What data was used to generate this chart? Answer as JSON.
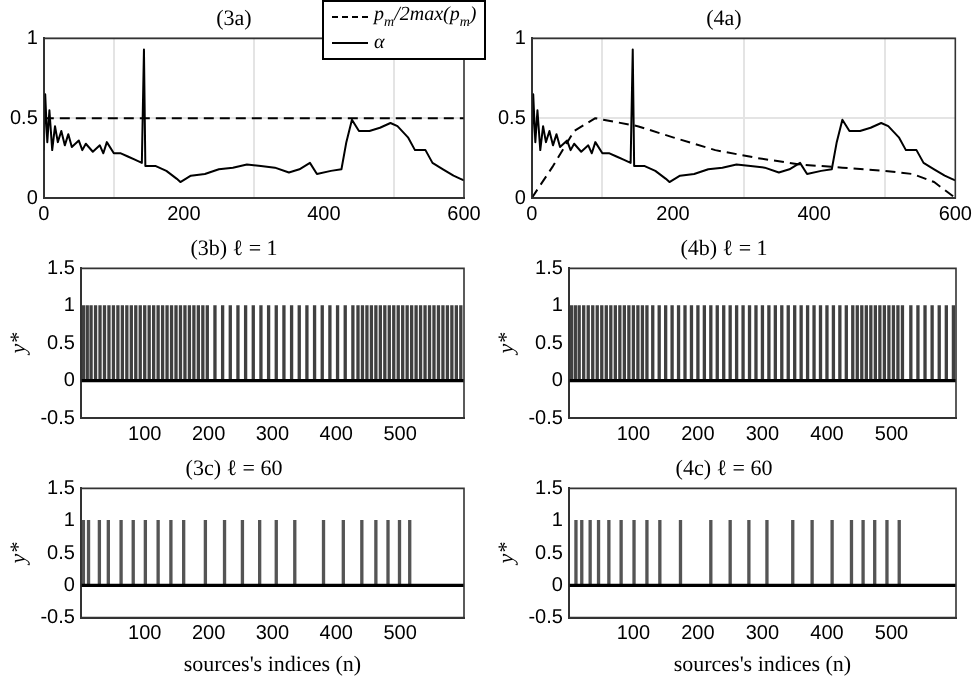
{
  "chart_data": [
    {
      "type": "line",
      "title": "(3a)",
      "xlim": [
        0,
        600
      ],
      "xticks": [
        0,
        200,
        400,
        600
      ],
      "ylim": [
        0,
        1
      ],
      "yticks": [
        0,
        0.5,
        1
      ],
      "grid": true,
      "legend": "top right",
      "marker": "none",
      "series": [
        {
          "name": "p$_{m}$/2max(p$_{m}$)",
          "color": "#000000",
          "line_style": "dashed",
          "x": [
            0,
            600
          ],
          "values": [
            0.5,
            0.5
          ]
        },
        {
          "name": "α",
          "color": "#000000",
          "line_style": "solid",
          "x": [
            0,
            2,
            5,
            8,
            12,
            16,
            20,
            25,
            30,
            35,
            40,
            50,
            55,
            60,
            70,
            80,
            85,
            90,
            100,
            110,
            120,
            130,
            140,
            143,
            145,
            160,
            175,
            190,
            195,
            210,
            230,
            250,
            270,
            290,
            310,
            330,
            350,
            365,
            380,
            390,
            410,
            425,
            432,
            440,
            450,
            465,
            480,
            495,
            505,
            520,
            530,
            545,
            555,
            570,
            585,
            595,
            600
          ],
          "values": [
            0.3,
            0.65,
            0.35,
            0.55,
            0.3,
            0.45,
            0.35,
            0.42,
            0.33,
            0.4,
            0.32,
            0.36,
            0.3,
            0.34,
            0.29,
            0.33,
            0.28,
            0.35,
            0.28,
            0.28,
            0.26,
            0.24,
            0.22,
            0.93,
            0.2,
            0.2,
            0.17,
            0.12,
            0.1,
            0.14,
            0.15,
            0.18,
            0.19,
            0.21,
            0.2,
            0.19,
            0.16,
            0.18,
            0.22,
            0.15,
            0.17,
            0.18,
            0.35,
            0.49,
            0.42,
            0.42,
            0.44,
            0.47,
            0.45,
            0.38,
            0.3,
            0.3,
            0.22,
            0.18,
            0.14,
            0.12,
            0.11
          ]
        }
      ]
    },
    {
      "type": "line",
      "title": "(4a)",
      "xlim": [
        0,
        600
      ],
      "xticks": [
        0,
        200,
        400,
        600
      ],
      "ylim": [
        0,
        1
      ],
      "yticks": [
        0,
        0.5,
        1
      ],
      "grid": true,
      "marker": "none",
      "series": [
        {
          "color": "#000000",
          "line_style": "dashed",
          "x": [
            0,
            30,
            60,
            90,
            150,
            200,
            260,
            320,
            380,
            440,
            500,
            540,
            570,
            600
          ],
          "values": [
            0,
            0.2,
            0.42,
            0.5,
            0.45,
            0.38,
            0.3,
            0.25,
            0.21,
            0.19,
            0.17,
            0.15,
            0.1,
            0
          ]
        },
        {
          "color": "#000000",
          "line_style": "solid",
          "x": [
            0,
            2,
            5,
            8,
            12,
            16,
            20,
            25,
            30,
            35,
            40,
            50,
            55,
            60,
            70,
            80,
            85,
            90,
            100,
            110,
            120,
            130,
            140,
            143,
            145,
            160,
            175,
            190,
            195,
            210,
            230,
            250,
            270,
            290,
            310,
            330,
            350,
            365,
            380,
            390,
            410,
            425,
            432,
            440,
            450,
            465,
            480,
            495,
            505,
            520,
            530,
            545,
            555,
            570,
            585,
            595,
            600
          ],
          "values": [
            0.3,
            0.65,
            0.35,
            0.55,
            0.3,
            0.45,
            0.35,
            0.42,
            0.33,
            0.4,
            0.32,
            0.36,
            0.3,
            0.34,
            0.29,
            0.33,
            0.28,
            0.35,
            0.28,
            0.28,
            0.26,
            0.24,
            0.22,
            0.93,
            0.2,
            0.2,
            0.17,
            0.12,
            0.1,
            0.14,
            0.15,
            0.18,
            0.19,
            0.21,
            0.2,
            0.19,
            0.16,
            0.18,
            0.22,
            0.15,
            0.17,
            0.18,
            0.35,
            0.49,
            0.42,
            0.42,
            0.44,
            0.47,
            0.45,
            0.38,
            0.3,
            0.3,
            0.22,
            0.18,
            0.14,
            0.12,
            0.11
          ]
        }
      ]
    },
    {
      "type": "bar",
      "title": "(3b) ℓ = 1",
      "ylabel": "y*",
      "xlim": [
        0,
        600
      ],
      "xticks": [
        100,
        200,
        300,
        400,
        500
      ],
      "ylim": [
        -0.5,
        1.5
      ],
      "yticks": [
        -0.5,
        0,
        0.5,
        1,
        1.5
      ],
      "marker": "none",
      "ref_lines": [
        {
          "axis": "y",
          "value": 0,
          "color": "#000000"
        }
      ],
      "series": [
        {
          "color": "#404040",
          "x": [
            4,
            10,
            16,
            23,
            30,
            37,
            44,
            51,
            58,
            65,
            72,
            79,
            86,
            93,
            100,
            107,
            114,
            121,
            128,
            135,
            142,
            149,
            156,
            163,
            170,
            177,
            184,
            191,
            198,
            210,
            222,
            234,
            246,
            258,
            270,
            282,
            294,
            306,
            318,
            330,
            342,
            354,
            366,
            378,
            390,
            402,
            414,
            426,
            434,
            441,
            448,
            455,
            462,
            469,
            476,
            483,
            490,
            497,
            504,
            511,
            518,
            525,
            532,
            539,
            546,
            553,
            560,
            567,
            574,
            581,
            588,
            595
          ],
          "values": [
            1,
            1,
            1,
            1,
            1,
            1,
            1,
            1,
            1,
            1,
            1,
            1,
            1,
            1,
            1,
            1,
            1,
            1,
            1,
            1,
            1,
            1,
            1,
            1,
            1,
            1,
            1,
            1,
            1,
            1,
            1,
            1,
            1,
            1,
            1,
            1,
            1,
            1,
            1,
            1,
            1,
            1,
            1,
            1,
            1,
            1,
            1,
            1,
            1,
            1,
            1,
            1,
            1,
            1,
            1,
            1,
            1,
            1,
            1,
            1,
            1,
            1,
            1,
            1,
            1,
            1,
            1,
            1,
            1,
            1,
            1,
            1
          ]
        }
      ]
    },
    {
      "type": "bar",
      "title": "(4b) ℓ = 1",
      "ylabel": "y*",
      "xlim": [
        0,
        600
      ],
      "xticks": [
        100,
        200,
        300,
        400,
        500
      ],
      "ylim": [
        -0.5,
        1.5
      ],
      "yticks": [
        -0.5,
        0,
        0.5,
        1,
        1.5
      ],
      "marker": "none",
      "ref_lines": [
        {
          "axis": "y",
          "value": 0,
          "color": "#000000"
        }
      ],
      "series": [
        {
          "color": "#404040",
          "x": [
            4,
            10,
            16,
            23,
            30,
            37,
            44,
            51,
            58,
            65,
            72,
            79,
            86,
            93,
            100,
            107,
            114,
            121,
            130,
            140,
            150,
            160,
            170,
            180,
            190,
            200,
            210,
            220,
            230,
            240,
            250,
            260,
            270,
            280,
            290,
            300,
            310,
            320,
            330,
            340,
            350,
            360,
            370,
            380,
            390,
            400,
            410,
            420,
            430,
            440,
            447,
            454,
            461,
            468,
            475,
            482,
            489,
            496,
            503,
            510,
            517,
            530,
            541,
            552,
            563,
            574,
            585,
            596
          ],
          "values": [
            1,
            1,
            1,
            1,
            1,
            1,
            1,
            1,
            1,
            1,
            1,
            1,
            1,
            1,
            1,
            1,
            1,
            1,
            1,
            1,
            1,
            1,
            1,
            1,
            1,
            1,
            1,
            1,
            1,
            1,
            1,
            1,
            1,
            1,
            1,
            1,
            1,
            1,
            1,
            1,
            1,
            1,
            1,
            1,
            1,
            1,
            1,
            1,
            1,
            1,
            1,
            1,
            1,
            1,
            1,
            1,
            1,
            1,
            1,
            1,
            1,
            1,
            1,
            1,
            1,
            1,
            1,
            1
          ]
        }
      ]
    },
    {
      "type": "bar",
      "title": "(3c) ℓ = 60",
      "xlabel": "sources's indices (n)",
      "ylabel": "y*",
      "xlim": [
        0,
        600
      ],
      "xticks": [
        100,
        200,
        300,
        400,
        500
      ],
      "ylim": [
        -0.5,
        1.5
      ],
      "yticks": [
        -0.5,
        0,
        0.5,
        1,
        1.5
      ],
      "marker": "none",
      "ref_lines": [
        {
          "axis": "y",
          "value": 0,
          "color": "#000000"
        }
      ],
      "series": [
        {
          "color": "#555555",
          "x": [
            4,
            12,
            29,
            43,
            63,
            82,
            101,
            121,
            141,
            161,
            195,
            225,
            253,
            280,
            306,
            335,
            380,
            411,
            440,
            462,
            481,
            499,
            515
          ],
          "values": [
            1,
            1,
            1,
            1,
            1,
            1,
            1,
            1,
            1,
            1,
            1,
            1,
            1,
            1,
            1,
            1,
            1,
            1,
            1,
            1,
            1,
            1,
            1
          ]
        }
      ]
    },
    {
      "type": "bar",
      "title": "(4c) ℓ = 60",
      "xlabel": "sources's indices (n)",
      "ylabel": "y*",
      "xlim": [
        0,
        600
      ],
      "xticks": [
        100,
        200,
        300,
        400,
        500
      ],
      "ylim": [
        -0.5,
        1.5
      ],
      "yticks": [
        -0.5,
        0,
        0.5,
        1,
        1.5
      ],
      "marker": "none",
      "ref_lines": [
        {
          "axis": "y",
          "value": 0,
          "color": "#000000"
        }
      ],
      "series": [
        {
          "color": "#555555",
          "x": [
            11,
            20,
            33,
            46,
            62,
            81,
            101,
            121,
            141,
            173,
            220,
            250,
            279,
            307,
            347,
            377,
            408,
            438,
            456,
            474,
            493,
            512
          ],
          "values": [
            1,
            1,
            1,
            1,
            1,
            1,
            1,
            1,
            1,
            1,
            1,
            1,
            1,
            1,
            1,
            1,
            1,
            1,
            1,
            1,
            1,
            1
          ]
        }
      ]
    }
  ]
}
